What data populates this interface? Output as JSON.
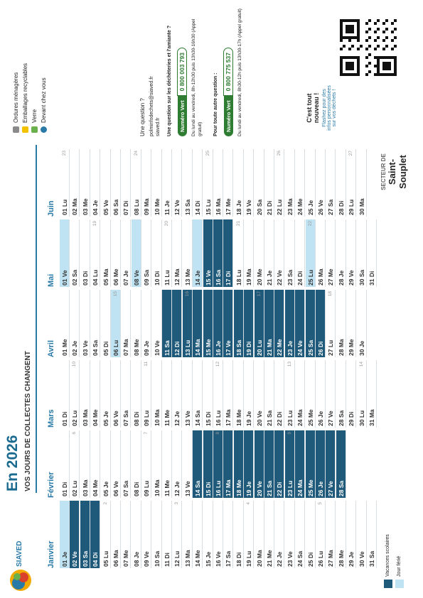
{
  "header": {
    "logo": "SIAVED",
    "title": "En 2026",
    "subtitle": "VOS JOURS DE COLLECTES CHANGENT"
  },
  "months": [
    {
      "name": "Janvier",
      "days": [
        {
          "label": "01 Je",
          "mark": "ferie"
        },
        {
          "label": "02 Ve",
          "mark": "vacances"
        },
        {
          "label": "03 Sa",
          "mark": "vacances"
        },
        {
          "label": "04 Di",
          "mark": "vacances"
        },
        {
          "label": "05 Lu",
          "week": 2
        },
        "06 Ma",
        "07 Me",
        "08 Je",
        "09 Ve",
        "10 Sa",
        "11 Di",
        {
          "label": "12 Lu",
          "week": 3
        },
        "13 Ma",
        "14 Me",
        "15 Je",
        "16 Ve",
        "17 Sa",
        "18 Di",
        {
          "label": "19 Lu",
          "week": 4
        },
        "20 Ma",
        "21 Me",
        "22 Je",
        "23 Ve",
        "24 Sa",
        "25 Di",
        {
          "label": "26 Lu",
          "week": 5
        },
        "27 Ma",
        "28 Me",
        "29 Je",
        "30 Ve",
        "31 Sa"
      ]
    },
    {
      "name": "Février",
      "days": [
        "01 Di",
        {
          "label": "02 Lu",
          "week": 6
        },
        "03 Ma",
        "04 Me",
        "05 Je",
        "06 Ve",
        "07 Sa",
        "08 Di",
        {
          "label": "09 Lu",
          "week": 7
        },
        "10 Ma",
        "11 Me",
        "12 Je",
        "13 Ve",
        {
          "label": "14 Sa",
          "mark": "vacances"
        },
        {
          "label": "15 Di",
          "mark": "vacances"
        },
        {
          "label": "16 Lu",
          "week": 8,
          "mark": "vacances"
        },
        {
          "label": "17 Ma",
          "mark": "vacances"
        },
        {
          "label": "18 Me",
          "mark": "vacances"
        },
        {
          "label": "19 Je",
          "mark": "vacances"
        },
        {
          "label": "20 Ve",
          "mark": "vacances"
        },
        {
          "label": "21 Sa",
          "mark": "vacances"
        },
        {
          "label": "22 Di",
          "mark": "vacances"
        },
        {
          "label": "23 Lu",
          "week": 9,
          "mark": "vacances"
        },
        {
          "label": "24 Ma",
          "mark": "vacances"
        },
        {
          "label": "25 Me",
          "mark": "vacances"
        },
        {
          "label": "26 Je",
          "mark": "vacances"
        },
        {
          "label": "27 Ve",
          "mark": "vacances"
        },
        {
          "label": "28 Sa",
          "mark": "vacances"
        }
      ]
    },
    {
      "name": "Mars",
      "days": [
        "01 Di",
        {
          "label": "02 Lu",
          "week": 10
        },
        "03 Ma",
        "04 Me",
        "05 Je",
        "06 Ve",
        "07 Sa",
        "08 Di",
        {
          "label": "09 Lu",
          "week": 11
        },
        "10 Ma",
        "11 Me",
        "12 Je",
        "13 Ve",
        "14 Sa",
        "15 Di",
        {
          "label": "16 Lu",
          "week": 12
        },
        "17 Ma",
        "18 Me",
        "19 Je",
        "20 Ve",
        "21 Sa",
        "22 Di",
        {
          "label": "23 Lu",
          "week": 13
        },
        "24 Ma",
        "25 Me",
        "26 Je",
        "27 Ve",
        "28 Sa",
        "29 Di",
        {
          "label": "30 Lu",
          "week": 14
        },
        "31 Ma"
      ]
    },
    {
      "name": "Avril",
      "days": [
        "01 Me",
        "02 Je",
        "03 Ve",
        "04 Sa",
        "05 Di",
        {
          "label": "06 Lu",
          "week": 15,
          "mark": "ferie"
        },
        "07 Ma",
        "08 Me",
        "09 Je",
        "10 Ve",
        {
          "label": "11 Sa",
          "mark": "vacances"
        },
        {
          "label": "12 Di",
          "mark": "vacances"
        },
        {
          "label": "13 Lu",
          "week": 16,
          "mark": "vacances"
        },
        {
          "label": "14 Ma",
          "mark": "vacances"
        },
        {
          "label": "15 Me",
          "mark": "vacances"
        },
        {
          "label": "16 Je",
          "mark": "vacances"
        },
        {
          "label": "17 Ve",
          "mark": "vacances"
        },
        {
          "label": "18 Sa",
          "mark": "vacances"
        },
        {
          "label": "19 Di",
          "mark": "vacances"
        },
        {
          "label": "20 Lu",
          "week": 17,
          "mark": "vacances"
        },
        {
          "label": "21 Ma",
          "mark": "vacances"
        },
        {
          "label": "22 Me",
          "mark": "vacances"
        },
        {
          "label": "23 Je",
          "mark": "vacances"
        },
        {
          "label": "24 Ve",
          "mark": "vacances"
        },
        {
          "label": "25 Sa",
          "mark": "vacances"
        },
        {
          "label": "26 Di",
          "mark": "vacances"
        },
        {
          "label": "27 Lu",
          "week": 18
        },
        "28 Ma",
        "29 Me",
        "30 Je"
      ]
    },
    {
      "name": "Mai",
      "days": [
        {
          "label": "01 Ve",
          "mark": "ferie"
        },
        "02 Sa",
        "03 Di",
        {
          "label": "04 Lu",
          "week": 19
        },
        "05 Ma",
        "06 Me",
        "07 Je",
        {
          "label": "08 Ve",
          "mark": "ferie"
        },
        "09 Sa",
        "10 Di",
        {
          "label": "11 Lu",
          "week": 20
        },
        "12 Ma",
        "13 Me",
        {
          "label": "14 Je",
          "mark": "ferie"
        },
        {
          "label": "15 Ve",
          "mark": "vacances"
        },
        {
          "label": "16 Sa",
          "mark": "vacances"
        },
        {
          "label": "17 Di",
          "mark": "vacances"
        },
        {
          "label": "18 Lu",
          "week": 21
        },
        "19 Ma",
        "20 Me",
        "21 Je",
        "22 Ve",
        "23 Sa",
        "24 Di",
        {
          "label": "25 Lu",
          "week": 22,
          "mark": "ferie"
        },
        "26 Ma",
        "27 Me",
        "28 Je",
        "29 Ve",
        "30 Sa",
        "31 Di"
      ]
    },
    {
      "name": "Juin",
      "days": [
        {
          "label": "01 Lu",
          "week": 23
        },
        "02 Ma",
        "03 Me",
        "04 Je",
        "05 Ve",
        "06 Sa",
        "07 Di",
        {
          "label": "08 Lu",
          "week": 24
        },
        "09 Ma",
        "10 Me",
        "11 Je",
        "12 Ve",
        "13 Sa",
        "14 Di",
        {
          "label": "15 Lu",
          "week": 25
        },
        "16 Ma",
        "17 Me",
        "18 Je",
        "19 Ve",
        "20 Sa",
        "21 Di",
        {
          "label": "22 Lu",
          "week": 26
        },
        "23 Ma",
        "24 Me",
        "25 Je",
        "26 Ve",
        "27 Sa",
        "28 Di",
        {
          "label": "29 Lu",
          "week": 27
        },
        "30 Ma"
      ]
    }
  ],
  "legend": {
    "items": [
      "Ordures ménagères",
      "Emballages recyclables",
      "Verre",
      "Devant chez vous"
    ],
    "vacances": "Vacances scolaires",
    "ferie": "Jour férié"
  },
  "contact": {
    "question": "Une question ?",
    "email": "polminfodechets@siaved.fr",
    "site": "siaved.fr",
    "decheteries": "Une question sur les déchèteries et l'amiante ?",
    "badge1": "Numéro Vert",
    "phone1": "0 800 003 793",
    "hours1": "Du lundi au vendredi, 8h-12h30 puis 13h30-16h30 (Appel gratuit)",
    "other": "Pour toute autre question :",
    "badge2": "Numéro Vert",
    "phone2": "0 800 775 537",
    "hours2": "Du lundi au vendredi, 8h30-12h puis 13h30-17h (Appel gratuit)"
  },
  "qr": {
    "headline": "C'est tout nouveau !",
    "text": "Flashez pour des infos personnalisées sur vos déchets !"
  },
  "sector": {
    "label": "SECTEUR DE",
    "name": "Saint-Souplet"
  }
}
